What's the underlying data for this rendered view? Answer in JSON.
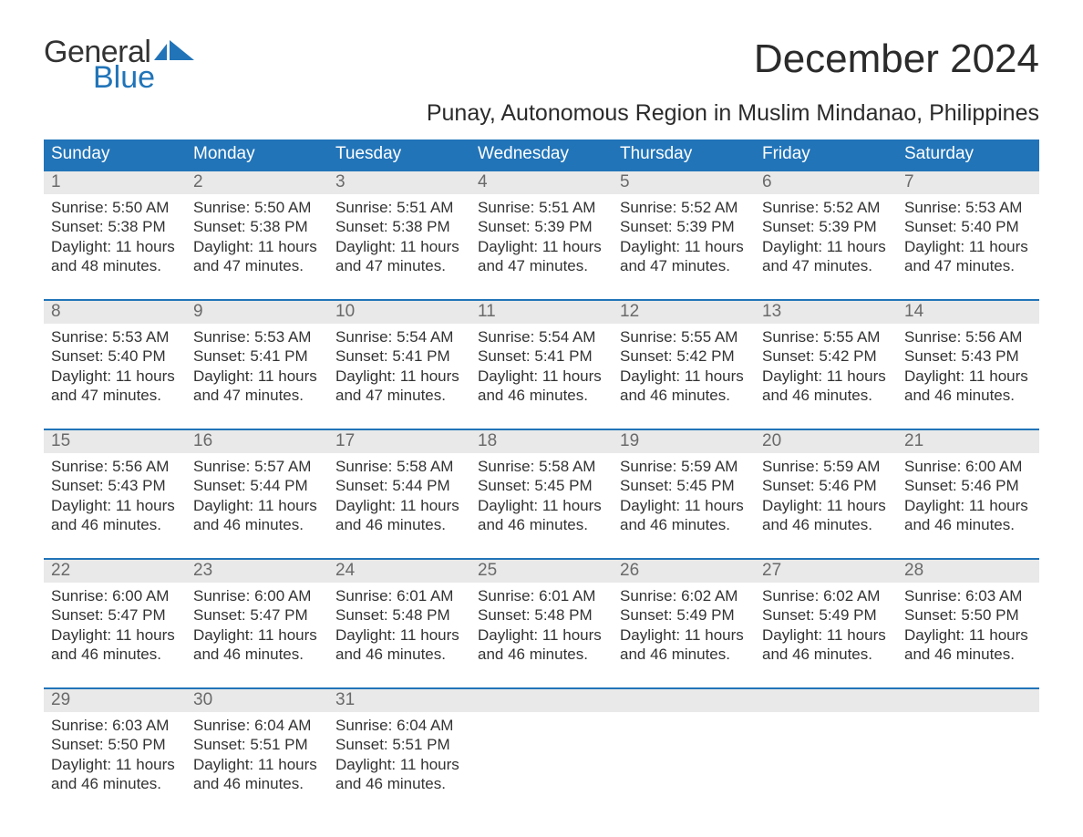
{
  "logo": {
    "text_general": "General",
    "text_blue": "Blue"
  },
  "title": "December 2024",
  "location": "Punay, Autonomous Region in Muslim Mindanao, Philippines",
  "colors": {
    "brand_blue": "#2174b8",
    "header_text": "#ffffff",
    "daynum_bg": "#e9e9e9",
    "daynum_text": "#6a6a6a",
    "body_text": "#333333",
    "background": "#ffffff"
  },
  "typography": {
    "title_fontsize": 44,
    "location_fontsize": 25,
    "dow_fontsize": 19,
    "daynum_fontsize": 19,
    "body_fontsize": 17,
    "logo_fontsize": 34
  },
  "daysOfWeek": [
    "Sunday",
    "Monday",
    "Tuesday",
    "Wednesday",
    "Thursday",
    "Friday",
    "Saturday"
  ],
  "weeks": [
    [
      {
        "n": "1",
        "sunrise": "5:50 AM",
        "sunset": "5:38 PM",
        "dl1": "Daylight: 11 hours",
        "dl2": "and 48 minutes."
      },
      {
        "n": "2",
        "sunrise": "5:50 AM",
        "sunset": "5:38 PM",
        "dl1": "Daylight: 11 hours",
        "dl2": "and 47 minutes."
      },
      {
        "n": "3",
        "sunrise": "5:51 AM",
        "sunset": "5:38 PM",
        "dl1": "Daylight: 11 hours",
        "dl2": "and 47 minutes."
      },
      {
        "n": "4",
        "sunrise": "5:51 AM",
        "sunset": "5:39 PM",
        "dl1": "Daylight: 11 hours",
        "dl2": "and 47 minutes."
      },
      {
        "n": "5",
        "sunrise": "5:52 AM",
        "sunset": "5:39 PM",
        "dl1": "Daylight: 11 hours",
        "dl2": "and 47 minutes."
      },
      {
        "n": "6",
        "sunrise": "5:52 AM",
        "sunset": "5:39 PM",
        "dl1": "Daylight: 11 hours",
        "dl2": "and 47 minutes."
      },
      {
        "n": "7",
        "sunrise": "5:53 AM",
        "sunset": "5:40 PM",
        "dl1": "Daylight: 11 hours",
        "dl2": "and 47 minutes."
      }
    ],
    [
      {
        "n": "8",
        "sunrise": "5:53 AM",
        "sunset": "5:40 PM",
        "dl1": "Daylight: 11 hours",
        "dl2": "and 47 minutes."
      },
      {
        "n": "9",
        "sunrise": "5:53 AM",
        "sunset": "5:41 PM",
        "dl1": "Daylight: 11 hours",
        "dl2": "and 47 minutes."
      },
      {
        "n": "10",
        "sunrise": "5:54 AM",
        "sunset": "5:41 PM",
        "dl1": "Daylight: 11 hours",
        "dl2": "and 47 minutes."
      },
      {
        "n": "11",
        "sunrise": "5:54 AM",
        "sunset": "5:41 PM",
        "dl1": "Daylight: 11 hours",
        "dl2": "and 46 minutes."
      },
      {
        "n": "12",
        "sunrise": "5:55 AM",
        "sunset": "5:42 PM",
        "dl1": "Daylight: 11 hours",
        "dl2": "and 46 minutes."
      },
      {
        "n": "13",
        "sunrise": "5:55 AM",
        "sunset": "5:42 PM",
        "dl1": "Daylight: 11 hours",
        "dl2": "and 46 minutes."
      },
      {
        "n": "14",
        "sunrise": "5:56 AM",
        "sunset": "5:43 PM",
        "dl1": "Daylight: 11 hours",
        "dl2": "and 46 minutes."
      }
    ],
    [
      {
        "n": "15",
        "sunrise": "5:56 AM",
        "sunset": "5:43 PM",
        "dl1": "Daylight: 11 hours",
        "dl2": "and 46 minutes."
      },
      {
        "n": "16",
        "sunrise": "5:57 AM",
        "sunset": "5:44 PM",
        "dl1": "Daylight: 11 hours",
        "dl2": "and 46 minutes."
      },
      {
        "n": "17",
        "sunrise": "5:58 AM",
        "sunset": "5:44 PM",
        "dl1": "Daylight: 11 hours",
        "dl2": "and 46 minutes."
      },
      {
        "n": "18",
        "sunrise": "5:58 AM",
        "sunset": "5:45 PM",
        "dl1": "Daylight: 11 hours",
        "dl2": "and 46 minutes."
      },
      {
        "n": "19",
        "sunrise": "5:59 AM",
        "sunset": "5:45 PM",
        "dl1": "Daylight: 11 hours",
        "dl2": "and 46 minutes."
      },
      {
        "n": "20",
        "sunrise": "5:59 AM",
        "sunset": "5:46 PM",
        "dl1": "Daylight: 11 hours",
        "dl2": "and 46 minutes."
      },
      {
        "n": "21",
        "sunrise": "6:00 AM",
        "sunset": "5:46 PM",
        "dl1": "Daylight: 11 hours",
        "dl2": "and 46 minutes."
      }
    ],
    [
      {
        "n": "22",
        "sunrise": "6:00 AM",
        "sunset": "5:47 PM",
        "dl1": "Daylight: 11 hours",
        "dl2": "and 46 minutes."
      },
      {
        "n": "23",
        "sunrise": "6:00 AM",
        "sunset": "5:47 PM",
        "dl1": "Daylight: 11 hours",
        "dl2": "and 46 minutes."
      },
      {
        "n": "24",
        "sunrise": "6:01 AM",
        "sunset": "5:48 PM",
        "dl1": "Daylight: 11 hours",
        "dl2": "and 46 minutes."
      },
      {
        "n": "25",
        "sunrise": "6:01 AM",
        "sunset": "5:48 PM",
        "dl1": "Daylight: 11 hours",
        "dl2": "and 46 minutes."
      },
      {
        "n": "26",
        "sunrise": "6:02 AM",
        "sunset": "5:49 PM",
        "dl1": "Daylight: 11 hours",
        "dl2": "and 46 minutes."
      },
      {
        "n": "27",
        "sunrise": "6:02 AM",
        "sunset": "5:49 PM",
        "dl1": "Daylight: 11 hours",
        "dl2": "and 46 minutes."
      },
      {
        "n": "28",
        "sunrise": "6:03 AM",
        "sunset": "5:50 PM",
        "dl1": "Daylight: 11 hours",
        "dl2": "and 46 minutes."
      }
    ],
    [
      {
        "n": "29",
        "sunrise": "6:03 AM",
        "sunset": "5:50 PM",
        "dl1": "Daylight: 11 hours",
        "dl2": "and 46 minutes."
      },
      {
        "n": "30",
        "sunrise": "6:04 AM",
        "sunset": "5:51 PM",
        "dl1": "Daylight: 11 hours",
        "dl2": "and 46 minutes."
      },
      {
        "n": "31",
        "sunrise": "6:04 AM",
        "sunset": "5:51 PM",
        "dl1": "Daylight: 11 hours",
        "dl2": "and 46 minutes."
      },
      null,
      null,
      null,
      null
    ]
  ]
}
